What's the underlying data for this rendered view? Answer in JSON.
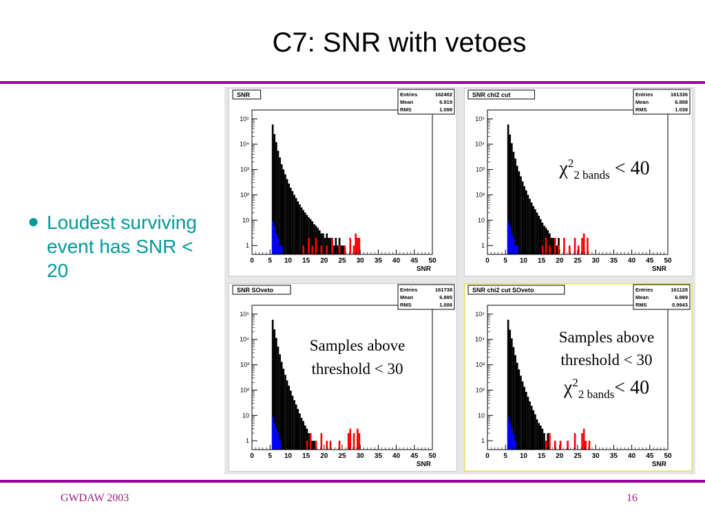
{
  "slide": {
    "title": "C7: SNR with vetoes",
    "bullet_text": "Loudest surviving event has SNR < 20",
    "footer_left": "GWDAW 2003",
    "page_number": "16",
    "accent_color": "#990099",
    "text_color": "#009999"
  },
  "annotations": {
    "top_right": {
      "chi": "χ",
      "sup": "2",
      "sub": "2 bands",
      "rest": " < 40"
    },
    "bottom_left": {
      "line1": "Samples above",
      "line2": "threshold < 30"
    },
    "bottom_right": {
      "line1": "Samples above",
      "line2": "threshold < 30",
      "chi": "χ",
      "sup": "2",
      "sub": "2 bands",
      "rest": "< 40"
    }
  },
  "chart_data": [
    {
      "type": "bar",
      "title": "SNR",
      "xlabel": "SNR",
      "stats": {
        "entries": "162402",
        "mean": "6.919",
        "rms": "1.098"
      },
      "xlim": [
        0,
        50
      ],
      "ylog": true,
      "yticks": [
        "1",
        "10",
        "10²",
        "10³",
        "10⁴",
        "10⁵"
      ],
      "xticks": [
        "0",
        "5",
        "10",
        "15",
        "20",
        "25",
        "30",
        "35",
        "40",
        "45",
        "50"
      ],
      "series": [
        {
          "color": "#000000",
          "bins": [
            [
              5.5,
              60000
            ],
            [
              6,
              25000
            ],
            [
              6.5,
              12000
            ],
            [
              7,
              5500
            ],
            [
              7.5,
              3000
            ],
            [
              8,
              1600
            ],
            [
              8.5,
              1000
            ],
            [
              9,
              650
            ],
            [
              9.5,
              420
            ],
            [
              10,
              280
            ],
            [
              10.5,
              190
            ],
            [
              11,
              140
            ],
            [
              11.5,
              100
            ],
            [
              12,
              75
            ],
            [
              12.5,
              55
            ],
            [
              13,
              42
            ],
            [
              13.5,
              32
            ],
            [
              14,
              25
            ],
            [
              14.5,
              20
            ],
            [
              15,
              16
            ],
            [
              15.5,
              13
            ],
            [
              16,
              11
            ],
            [
              16.5,
              9
            ],
            [
              17,
              7
            ],
            [
              17.5,
              6
            ],
            [
              18,
              5
            ],
            [
              18.5,
              4
            ],
            [
              19,
              3
            ],
            [
              19.5,
              3
            ],
            [
              20,
              2
            ],
            [
              20.5,
              3
            ],
            [
              21,
              2
            ],
            [
              21.5,
              2
            ],
            [
              22,
              2
            ],
            [
              22.5,
              1
            ],
            [
              23,
              2
            ],
            [
              23.5,
              1
            ],
            [
              24,
              2
            ],
            [
              24.5,
              1
            ],
            [
              25,
              1
            ]
          ]
        },
        {
          "color": "#ff0000",
          "bins": [
            [
              14,
              1
            ],
            [
              15.5,
              2
            ],
            [
              16.5,
              1
            ],
            [
              17.5,
              2
            ],
            [
              19,
              1
            ],
            [
              20.5,
              1
            ],
            [
              22,
              2
            ],
            [
              24,
              1
            ],
            [
              25.5,
              1
            ],
            [
              27,
              2
            ],
            [
              28,
              1
            ],
            [
              28.5,
              3
            ],
            [
              29,
              2
            ],
            [
              29.5,
              2
            ]
          ]
        },
        {
          "color": "#0000ff",
          "bins": [
            [
              5.5,
              9
            ],
            [
              6,
              6
            ],
            [
              6.5,
              3
            ],
            [
              7,
              2
            ],
            [
              7.5,
              1
            ],
            [
              8,
              1
            ]
          ]
        }
      ]
    },
    {
      "type": "bar",
      "title": "SNR chi2 cut",
      "xlabel": "SNR",
      "stats": {
        "entries": "161336",
        "mean": "6.898",
        "rms": "1.038"
      },
      "xlim": [
        0,
        50
      ],
      "ylog": true,
      "yticks": [
        "1",
        "10",
        "10²",
        "10³",
        "10⁴",
        "10⁵"
      ],
      "xticks": [
        "0",
        "5",
        "10",
        "15",
        "20",
        "25",
        "30",
        "35",
        "40",
        "45",
        "50"
      ],
      "series": [
        {
          "color": "#000000",
          "bins": [
            [
              5.5,
              60000
            ],
            [
              6,
              24000
            ],
            [
              6.5,
              11000
            ],
            [
              7,
              5000
            ],
            [
              7.5,
              2700
            ],
            [
              8,
              1400
            ],
            [
              8.5,
              850
            ],
            [
              9,
              540
            ],
            [
              9.5,
              340
            ],
            [
              10,
              220
            ],
            [
              10.5,
              150
            ],
            [
              11,
              100
            ],
            [
              11.5,
              70
            ],
            [
              12,
              50
            ],
            [
              12.5,
              36
            ],
            [
              13,
              27
            ],
            [
              13.5,
              20
            ],
            [
              14,
              15
            ],
            [
              14.5,
              11
            ],
            [
              15,
              8
            ],
            [
              15.5,
              6
            ],
            [
              16,
              5
            ],
            [
              16.5,
              4
            ],
            [
              17,
              3
            ],
            [
              17.5,
              2
            ],
            [
              18,
              2
            ],
            [
              18.5,
              2
            ],
            [
              19,
              1
            ],
            [
              19.5,
              2
            ]
          ]
        },
        {
          "color": "#ff0000",
          "bins": [
            [
              15,
              1
            ],
            [
              16,
              2
            ],
            [
              17,
              1
            ],
            [
              18.5,
              2
            ],
            [
              19.5,
              1
            ],
            [
              21,
              2
            ],
            [
              22.5,
              1
            ],
            [
              24,
              2
            ],
            [
              25,
              1
            ],
            [
              26,
              2
            ],
            [
              26.5,
              3
            ],
            [
              27.5,
              2
            ]
          ]
        },
        {
          "color": "#0000ff",
          "bins": [
            [
              5.5,
              9
            ],
            [
              6,
              6
            ],
            [
              6.5,
              3
            ],
            [
              7,
              2
            ],
            [
              7.5,
              1
            ],
            [
              8,
              1
            ]
          ]
        }
      ]
    },
    {
      "type": "bar",
      "title": "SNR SOveto",
      "xlabel": "SNR",
      "stats": {
        "entries": "161738",
        "mean": "6.895",
        "rms": "1.006"
      },
      "xlim": [
        0,
        50
      ],
      "ylog": true,
      "yticks": [
        "1",
        "10",
        "10²",
        "10³",
        "10⁴",
        "10⁵"
      ],
      "xticks": [
        "0",
        "5",
        "10",
        "15",
        "20",
        "25",
        "30",
        "35",
        "40",
        "45",
        "50"
      ],
      "series": [
        {
          "color": "#000000",
          "bins": [
            [
              5.5,
              60000
            ],
            [
              6,
              25000
            ],
            [
              6.5,
              11500
            ],
            [
              7,
              5200
            ],
            [
              7.5,
              2600
            ],
            [
              8,
              1300
            ],
            [
              8.5,
              700
            ],
            [
              9,
              400
            ],
            [
              9.5,
              240
            ],
            [
              10,
              150
            ],
            [
              10.5,
              95
            ],
            [
              11,
              60
            ],
            [
              11.5,
              40
            ],
            [
              12,
              27
            ],
            [
              12.5,
              18
            ],
            [
              13,
              12
            ],
            [
              13.5,
              8
            ],
            [
              14,
              6
            ],
            [
              14.5,
              4
            ],
            [
              15,
              3
            ],
            [
              15.5,
              2
            ],
            [
              16,
              2
            ],
            [
              16.5,
              1
            ],
            [
              17,
              1
            ]
          ]
        },
        {
          "color": "#ff0000",
          "bins": [
            [
              15,
              1
            ],
            [
              16,
              2
            ],
            [
              17.5,
              1
            ],
            [
              19,
              2
            ],
            [
              20.5,
              1
            ],
            [
              21.5,
              1
            ],
            [
              24,
              1
            ],
            [
              26.5,
              2
            ],
            [
              27,
              3
            ],
            [
              28,
              2
            ],
            [
              29,
              3
            ],
            [
              29.5,
              2
            ]
          ]
        },
        {
          "color": "#0000ff",
          "bins": [
            [
              5.5,
              9
            ],
            [
              6,
              5
            ],
            [
              6.5,
              3
            ],
            [
              7,
              2
            ],
            [
              7.5,
              1
            ]
          ]
        }
      ]
    },
    {
      "type": "bar",
      "title": "SNR chi2 cut SOveto",
      "xlabel": "SNR",
      "stats": {
        "entries": "161128",
        "mean": "6.889",
        "rms": "0.9943"
      },
      "xlim": [
        0,
        50
      ],
      "ylog": true,
      "yticks": [
        "1",
        "10",
        "10²",
        "10³",
        "10⁴",
        "10⁵"
      ],
      "xticks": [
        "0",
        "5",
        "10",
        "15",
        "20",
        "25",
        "30",
        "35",
        "40",
        "45",
        "50"
      ],
      "series": [
        {
          "color": "#000000",
          "bins": [
            [
              5.5,
              60000
            ],
            [
              6,
              24000
            ],
            [
              6.5,
              11000
            ],
            [
              7,
              5000
            ],
            [
              7.5,
              2400
            ],
            [
              8,
              1200
            ],
            [
              8.5,
              650
            ],
            [
              9,
              370
            ],
            [
              9.5,
              220
            ],
            [
              10,
              135
            ],
            [
              10.5,
              85
            ],
            [
              11,
              55
            ],
            [
              11.5,
              36
            ],
            [
              12,
              24
            ],
            [
              12.5,
              16
            ],
            [
              13,
              11
            ],
            [
              13.5,
              7
            ],
            [
              14,
              5
            ],
            [
              14.5,
              4
            ],
            [
              15,
              3
            ],
            [
              15.5,
              2
            ],
            [
              16,
              1
            ],
            [
              16.5,
              2
            ]
          ]
        },
        {
          "color": "#ff0000",
          "bins": [
            [
              16,
              1
            ],
            [
              17,
              2
            ],
            [
              18.5,
              1
            ],
            [
              20,
              1
            ],
            [
              22,
              1
            ],
            [
              24,
              2
            ],
            [
              26,
              2
            ],
            [
              26.5,
              3
            ],
            [
              27,
              1
            ],
            [
              28,
              1
            ]
          ]
        },
        {
          "color": "#0000ff",
          "bins": [
            [
              5.5,
              9
            ],
            [
              6,
              5
            ],
            [
              6.5,
              3
            ],
            [
              7,
              2
            ],
            [
              7.5,
              1
            ]
          ]
        }
      ]
    }
  ]
}
